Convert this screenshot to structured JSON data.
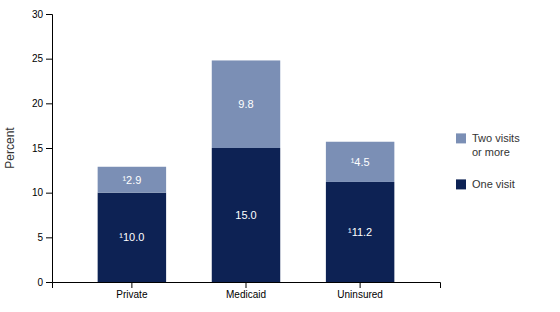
{
  "chart_data": {
    "type": "bar",
    "stacked": true,
    "data_labels": true,
    "grid": false,
    "legend": "right",
    "y_label": "Percent",
    "categories": [
      "Private",
      "Medicaid",
      "Uninsured"
    ],
    "series": [
      {
        "name": "One visit",
        "color": "#0d2254",
        "values": [
          10.0,
          15.0,
          11.2
        ],
        "value_labels": [
          "¹10.0",
          "15.0",
          "¹11.2"
        ]
      },
      {
        "name": "Two visits\nor more",
        "color": "#7b8fb5",
        "values": [
          2.9,
          9.8,
          4.5
        ],
        "value_labels": [
          "¹2.9",
          "9.8",
          "¹4.5"
        ]
      }
    ],
    "ylim": [
      0,
      30
    ],
    "yticks": [
      0,
      5,
      10,
      15,
      20,
      25,
      30
    ]
  }
}
